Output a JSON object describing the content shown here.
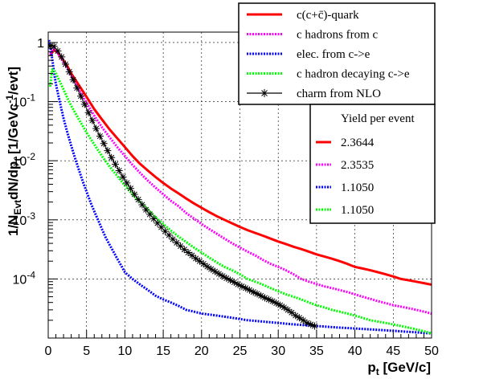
{
  "chart_data": {
    "type": "line",
    "xlabel": "p_t [GeV/c]",
    "ylabel": "1/N_Evt dN/dp_t [1/GeVc^-1/evt]",
    "xlim": [
      0,
      50
    ],
    "ylim": [
      1e-05,
      1.5
    ],
    "yscale": "log",
    "grid": true,
    "x_ticks": [
      0,
      5,
      10,
      15,
      20,
      25,
      30,
      35,
      40,
      45,
      50
    ],
    "y_ticks": [
      {
        "value": 1,
        "label": "1"
      },
      {
        "value": 0.1,
        "label": "10^-1"
      },
      {
        "value": 0.01,
        "label": "10^-2"
      },
      {
        "value": 0.001,
        "label": "10^-3"
      },
      {
        "value": 0.0001,
        "label": "10^-4"
      }
    ],
    "legend_position": "top-right",
    "series": [
      {
        "name": "c(c+c̄)-quark",
        "color": "#ff0000",
        "style": "solid",
        "x": [
          0.25,
          0.75,
          1.25,
          1.75,
          2.5,
          3,
          4,
          5,
          6,
          7,
          8,
          9,
          10,
          11,
          12,
          13,
          14,
          15,
          16,
          17,
          18,
          19,
          20,
          21,
          22,
          23,
          24,
          25,
          26,
          27,
          28,
          29,
          30,
          31,
          32,
          33,
          34,
          35,
          36,
          37,
          38,
          39,
          40,
          41,
          42,
          43,
          44,
          45,
          46,
          47,
          48,
          49,
          50
        ],
        "y": [
          0.6,
          0.75,
          0.68,
          0.55,
          0.4,
          0.3,
          0.19,
          0.12,
          0.075,
          0.05,
          0.034,
          0.024,
          0.017,
          0.012,
          0.0088,
          0.0068,
          0.0053,
          0.0042,
          0.0034,
          0.0028,
          0.0023,
          0.0019,
          0.0016,
          0.00135,
          0.00115,
          0.001,
          0.00087,
          0.00076,
          0.00067,
          0.0006,
          0.00054,
          0.00048,
          0.00043,
          0.00039,
          0.00035,
          0.00032,
          0.00029,
          0.00026,
          0.00024,
          0.00022,
          0.0002,
          0.00018,
          0.00016,
          0.00015,
          0.00014,
          0.00013,
          0.00012,
          0.00011,
          0.0001,
          9.5e-05,
          9e-05,
          8.5e-05,
          8e-05
        ]
      },
      {
        "name": "c hadrons from c",
        "color": "#ff00ff",
        "style": "dotted",
        "x": [
          0.25,
          0.75,
          1.25,
          1.75,
          2.5,
          3,
          4,
          5,
          6,
          7,
          8,
          9,
          10,
          11,
          12,
          13,
          14,
          15,
          16,
          17,
          18,
          19,
          20,
          21,
          22,
          23,
          24,
          25,
          26,
          27,
          28,
          29,
          30,
          31,
          32,
          33,
          34,
          35,
          36,
          37,
          38,
          39,
          40,
          41,
          42,
          43,
          44,
          45,
          46,
          47,
          48,
          49,
          50
        ],
        "y": [
          0.65,
          0.8,
          0.66,
          0.52,
          0.36,
          0.27,
          0.16,
          0.095,
          0.058,
          0.037,
          0.025,
          0.017,
          0.012,
          0.0085,
          0.0062,
          0.0046,
          0.0035,
          0.0027,
          0.0021,
          0.0017,
          0.0013,
          0.00105,
          0.00085,
          0.0007,
          0.00058,
          0.00048,
          0.0004,
          0.00034,
          0.00029,
          0.00025,
          0.00021,
          0.00018,
          0.00016,
          0.00014,
          0.00012,
          0.0001,
          9e-05,
          8.2e-05,
          7.5e-05,
          7e-05,
          6.5e-05,
          6e-05,
          5.5e-05,
          5e-05,
          4.6e-05,
          4.2e-05,
          3.9e-05,
          3.6e-05,
          3.4e-05,
          3.2e-05,
          3e-05,
          2.8e-05,
          2.6e-05
        ]
      },
      {
        "name": "elec. from c->e",
        "color": "#0000ff",
        "style": "dotted",
        "x": [
          0.1,
          0.25,
          0.5,
          0.75,
          1,
          1.5,
          2,
          2.5,
          3,
          3.5,
          4,
          4.5,
          5,
          5.5,
          6,
          6.5,
          7,
          7.5,
          8,
          8.5,
          9,
          9.5,
          10,
          11,
          12,
          13,
          14,
          15,
          16,
          17,
          18,
          19,
          20,
          22,
          24,
          26,
          28,
          30,
          32,
          35,
          38,
          42,
          46,
          50
        ],
        "y": [
          1.1,
          0.9,
          0.55,
          0.32,
          0.2,
          0.1,
          0.052,
          0.03,
          0.018,
          0.011,
          0.007,
          0.0045,
          0.003,
          0.002,
          0.0014,
          0.001,
          0.0007,
          0.0005,
          0.00038,
          0.00029,
          0.00022,
          0.00017,
          0.00013,
          0.0001,
          8e-05,
          6.5e-05,
          5.2e-05,
          4.5e-05,
          4e-05,
          3.5e-05,
          3e-05,
          2.8e-05,
          2.6e-05,
          2.4e-05,
          2.2e-05,
          2e-05,
          1.9e-05,
          1.8e-05,
          1.7e-05,
          1.6e-05,
          1.5e-05,
          1.4e-05,
          1.3e-05,
          1.2e-05
        ]
      },
      {
        "name": "c hadron decaying c->e",
        "color": "#00ff00",
        "style": "dotted",
        "x": [
          0.25,
          0.5,
          0.75,
          1,
          1.5,
          2,
          2.5,
          3,
          4,
          5,
          6,
          7,
          8,
          9,
          10,
          11,
          12,
          13,
          14,
          15,
          16,
          17,
          18,
          19,
          20,
          21,
          22,
          23,
          24,
          25,
          26,
          27,
          28,
          29,
          30,
          31,
          32,
          33,
          34,
          35,
          36,
          37,
          38,
          39,
          40,
          41,
          42,
          43,
          44,
          45,
          46,
          47,
          48,
          49,
          50
        ],
        "y": [
          0.18,
          0.35,
          0.34,
          0.3,
          0.22,
          0.16,
          0.115,
          0.085,
          0.05,
          0.03,
          0.019,
          0.012,
          0.008,
          0.0055,
          0.0038,
          0.0027,
          0.002,
          0.0015,
          0.0011,
          0.00085,
          0.00066,
          0.00052,
          0.00042,
          0.00034,
          0.00028,
          0.00023,
          0.00019,
          0.00016,
          0.00014,
          0.00012,
          0.0001,
          9e-05,
          8e-05,
          7e-05,
          6.2e-05,
          5.5e-05,
          5e-05,
          4.5e-05,
          4e-05,
          3.6e-05,
          3.3e-05,
          3e-05,
          2.8e-05,
          2.6e-05,
          2.4e-05,
          2.2e-05,
          2e-05,
          1.9e-05,
          1.8e-05,
          1.7e-05,
          1.6e-05,
          1.5e-05,
          1.4e-05,
          1.3e-05,
          1.2e-05
        ]
      },
      {
        "name": "charm from NLO",
        "color": "#000000",
        "style": "star",
        "x": [
          0.25,
          0.75,
          1.25,
          1.75,
          2.25,
          2.75,
          3.25,
          3.75,
          4.25,
          4.75,
          5.25,
          5.75,
          6.25,
          6.75,
          7.25,
          7.75,
          8.25,
          8.75,
          9.25,
          9.75,
          10.25,
          10.75,
          11.25,
          11.75,
          12.25,
          12.75,
          13.25,
          13.75,
          14.25,
          14.75,
          15.25,
          15.75,
          16.25,
          16.75,
          17.25,
          17.75,
          18.25,
          18.75,
          19.25,
          19.75,
          20.25,
          20.75,
          21.25,
          21.75,
          22.25,
          22.75,
          23.25,
          23.75,
          24.25,
          24.75,
          25.25,
          25.75,
          26.25,
          26.75,
          27.25,
          27.75,
          28.25,
          28.75,
          29.25,
          29.75,
          30.25,
          30.75,
          31.25,
          31.75,
          32.25,
          32.75,
          33.25,
          33.75,
          34.25,
          34.75
        ],
        "y": [
          0.88,
          0.86,
          0.72,
          0.57,
          0.43,
          0.32,
          0.235,
          0.17,
          0.124,
          0.09,
          0.065,
          0.048,
          0.035,
          0.026,
          0.0195,
          0.0148,
          0.0113,
          0.0087,
          0.0068,
          0.0053,
          0.0042,
          0.0034,
          0.0027,
          0.0022,
          0.0018,
          0.00148,
          0.00124,
          0.00104,
          0.00088,
          0.00075,
          0.00064,
          0.00055,
          0.00047,
          0.00041,
          0.00036,
          0.000315,
          0.00028,
          0.00025,
          0.000222,
          0.0002,
          0.00018,
          0.000162,
          0.000147,
          0.000134,
          0.000122,
          0.000112,
          0.000103,
          9.5e-05,
          8.8e-05,
          8.1e-05,
          7.5e-05,
          7e-05,
          6.5e-05,
          6e-05,
          5.6e-05,
          5.2e-05,
          4.8e-05,
          4.5e-05,
          4.2e-05,
          3.9e-05,
          3.6e-05,
          3.3e-05,
          3e-05,
          2.7e-05,
          2.4e-05,
          2.2e-05,
          2e-05,
          1.8e-05,
          1.7e-05,
          1.6e-05
        ]
      }
    ],
    "yield_legend": {
      "title": "Yield per event",
      "entries": [
        {
          "value": "2.3644",
          "color": "#ff0000",
          "style": "solid"
        },
        {
          "value": "2.3535",
          "color": "#ff00ff",
          "style": "dotted"
        },
        {
          "value": "1.1050",
          "color": "#0000ff",
          "style": "dotted"
        },
        {
          "value": "1.1050",
          "color": "#00ff00",
          "style": "dotted"
        }
      ]
    }
  }
}
